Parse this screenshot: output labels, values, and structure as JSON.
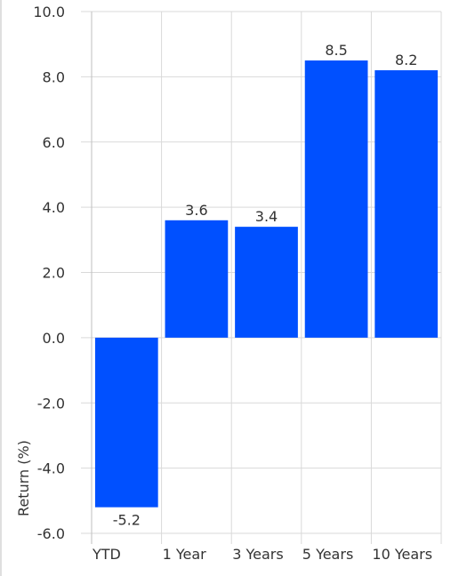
{
  "chart_data": {
    "type": "bar",
    "title": "",
    "xlabel": "",
    "ylabel": "Return (%)",
    "categories": [
      "YTD",
      "1 Year",
      "3 Years",
      "5 Years",
      "10 Years"
    ],
    "values": [
      -5.2,
      3.6,
      3.4,
      8.5,
      8.2
    ],
    "data_labels": [
      "-5.2",
      "3.6",
      "3.4",
      "8.5",
      "8.2"
    ],
    "ylim": [
      -6,
      10
    ],
    "yticks": [
      "-6.0",
      "-4.0",
      "-2.0",
      "0.0",
      "2.0",
      "4.0",
      "6.0",
      "8.0",
      "10.0"
    ],
    "grid": true,
    "legend": "none",
    "bar_color": "#0050ff",
    "grid_color": "#d9d9d9",
    "axis_color": "#bfbfbf"
  }
}
